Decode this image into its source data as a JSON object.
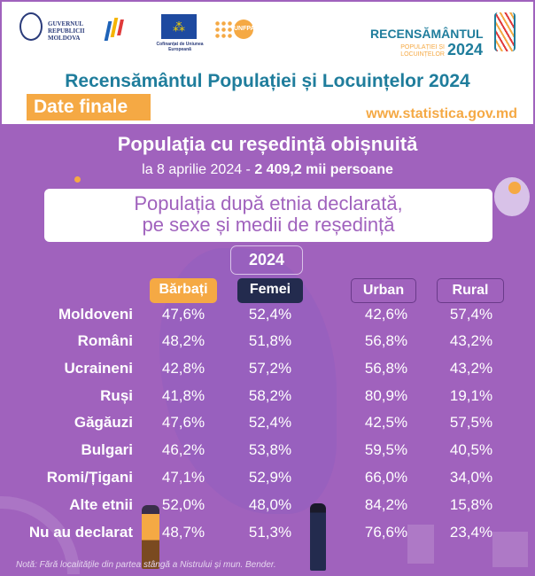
{
  "header": {
    "logos": [
      "Guvernul Republicii Moldova",
      "Statistica Moldovei",
      "Cofinanțat de Uniunea Europeană",
      "UNFPA",
      "Recensământul Populației și Locuințelor 2024"
    ],
    "gov_text": "GUVERNUL REPUBLICII MOLDOVA",
    "eu_text": "Cofinanțat de Uniunea Europeană",
    "census_logo": {
      "big": "RECENSĂMÂNTUL",
      "small": "POPULAȚIEI ȘI LOCUINȚELOR",
      "year": "2024"
    },
    "title": "Recensământul Populației și Locuințelor 2024",
    "badge": "Date finale",
    "url": "www.statistica.gov.md"
  },
  "subtitle": "Populația cu reședință obișnuită",
  "date_line": "la 8 aprilie 2024 - ",
  "date_total": "2 409,2 mii persoane",
  "box_title_1": "Populația după etnia declarată,",
  "box_title_2": "pe sexe și medii de reședință",
  "year": "2024",
  "columns": [
    "Bărbați",
    "Femei",
    "Urban",
    "Rural"
  ],
  "colors": {
    "background": "#a062bd",
    "barbati": "#f5a944",
    "femei": "#232b4e",
    "title": "#1f7d9c"
  },
  "rows": [
    {
      "label": "Moldoveni",
      "values": [
        "47,6%",
        "52,4%",
        "42,6%",
        "57,4%"
      ]
    },
    {
      "label": "Români",
      "values": [
        "48,2%",
        "51,8%",
        "56,8%",
        "43,2%"
      ]
    },
    {
      "label": "Ucraineni",
      "values": [
        "42,8%",
        "57,2%",
        "56,8%",
        "43,2%"
      ]
    },
    {
      "label": "Ruși",
      "values": [
        "41,8%",
        "58,2%",
        "80,9%",
        "19,1%"
      ]
    },
    {
      "label": "Găgăuzi",
      "values": [
        "47,6%",
        "52,4%",
        "42,5%",
        "57,5%"
      ]
    },
    {
      "label": "Bulgari",
      "values": [
        "46,2%",
        "53,8%",
        "59,5%",
        "40,5%"
      ]
    },
    {
      "label": "Romi/Țigani",
      "values": [
        "47,1%",
        "52,9%",
        "66,0%",
        "34,0%"
      ]
    },
    {
      "label": "Alte etnii",
      "values": [
        "52,0%",
        "48,0%",
        "84,2%",
        "15,8%"
      ]
    },
    {
      "label": "Nu au declarat",
      "values": [
        "48,7%",
        "51,3%",
        "76,6%",
        "23,4%"
      ]
    }
  ],
  "note": "Notă: Fără localitățile din partea stângă a Nistrului și mun. Bender."
}
